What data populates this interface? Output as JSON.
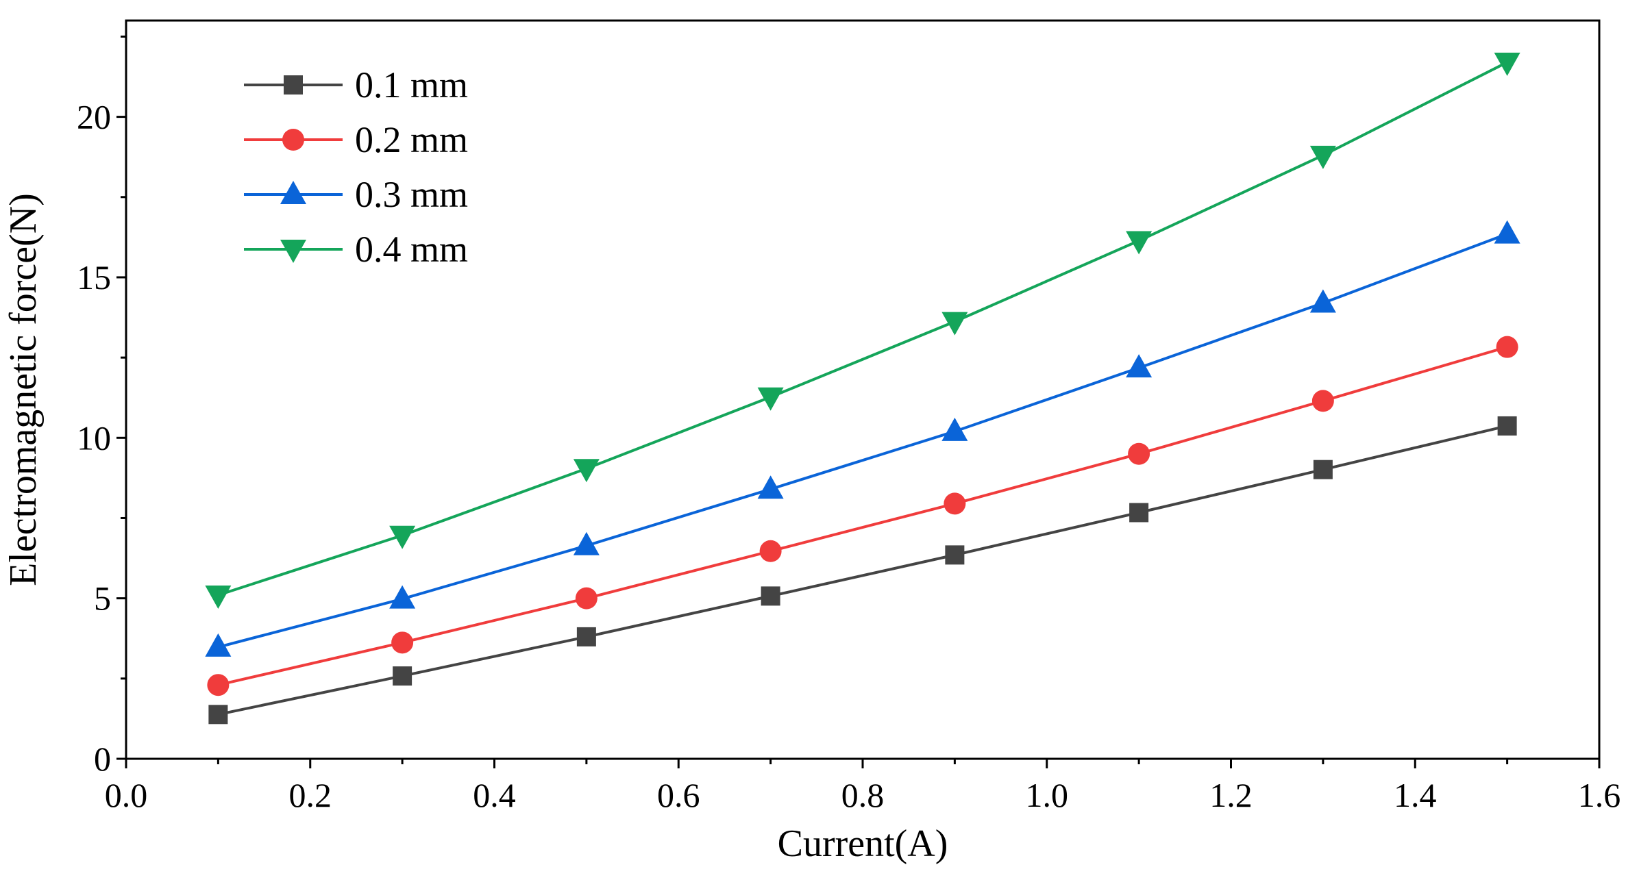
{
  "chart_data": {
    "type": "line",
    "title": "",
    "xlabel": "Current(A)",
    "ylabel": "Electromagnetic force(N)",
    "xlim": [
      0.0,
      1.6
    ],
    "ylim": [
      0,
      23
    ],
    "xticks": [
      0.0,
      0.2,
      0.4,
      0.6,
      0.8,
      1.0,
      1.2,
      1.4,
      1.6
    ],
    "xtick_labels": [
      "0.0",
      "0.2",
      "0.4",
      "0.6",
      "0.8",
      "1.0",
      "1.2",
      "1.4",
      "1.6"
    ],
    "yticks": [
      0,
      5,
      10,
      15,
      20
    ],
    "ytick_labels": [
      "0",
      "5",
      "10",
      "15",
      "20"
    ],
    "grid": false,
    "legend_position": "top-left",
    "x": [
      0.1,
      0.3,
      0.5,
      0.7,
      0.9,
      1.1,
      1.3,
      1.5
    ],
    "series": [
      {
        "name": "0.1 mm",
        "color": "#444444",
        "marker": "square",
        "values": [
          1.38,
          2.58,
          3.8,
          5.07,
          6.35,
          7.67,
          9.01,
          10.37
        ]
      },
      {
        "name": "0.2 mm",
        "color": "#f03c3c",
        "marker": "circle",
        "values": [
          2.3,
          3.62,
          5.0,
          6.47,
          7.95,
          9.5,
          11.15,
          12.83
        ]
      },
      {
        "name": "0.3 mm",
        "color": "#0a64d8",
        "marker": "triangle-up",
        "values": [
          3.48,
          4.98,
          6.64,
          8.4,
          10.2,
          12.18,
          14.2,
          16.35
        ]
      },
      {
        "name": "0.4 mm",
        "color": "#14a55a",
        "marker": "triangle-down",
        "values": [
          5.1,
          6.96,
          9.04,
          11.27,
          13.62,
          16.14,
          18.8,
          21.7
        ]
      }
    ]
  }
}
